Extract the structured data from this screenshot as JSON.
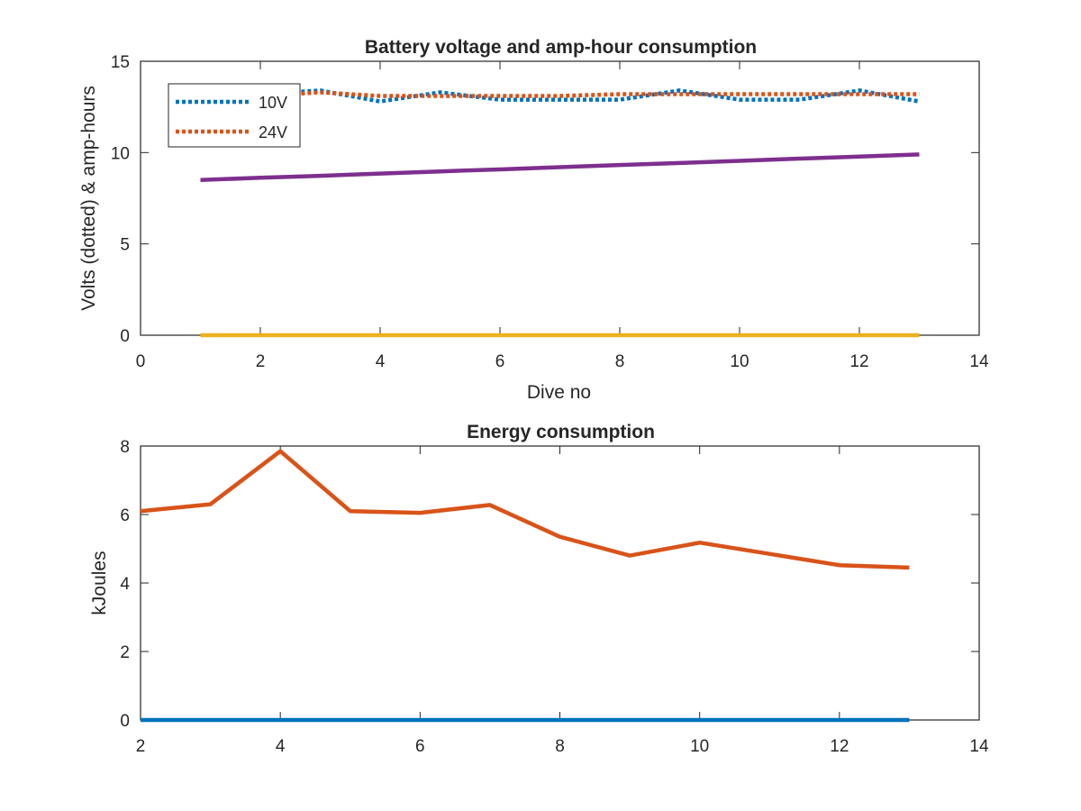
{
  "chart_data": [
    {
      "type": "line",
      "title": "Battery voltage and amp-hour consumption",
      "xlabel": "Dive no",
      "ylabel": "Volts (dotted) & amp-hours",
      "xlim": [
        0,
        14
      ],
      "ylim": [
        0,
        15
      ],
      "xticks": [
        "0",
        "2",
        "4",
        "6",
        "8",
        "10",
        "12",
        "14"
      ],
      "yticks": [
        "0",
        "5",
        "10",
        "15"
      ],
      "grid": false,
      "legend": {
        "placement": "top-left",
        "entries": [
          "10V",
          "24V"
        ]
      },
      "x": [
        1,
        2,
        3,
        4,
        5,
        6,
        7,
        8,
        9,
        10,
        11,
        12,
        13
      ],
      "series": [
        {
          "name": "10V",
          "style": "dotted",
          "color": "#0072BD",
          "values": [
            13.1,
            13.2,
            13.4,
            12.8,
            13.3,
            12.9,
            12.9,
            12.9,
            13.4,
            12.9,
            12.9,
            13.4,
            12.8
          ]
        },
        {
          "name": "24V",
          "style": "dotted",
          "color": "#D95319",
          "values": [
            13.1,
            13.1,
            13.3,
            13.1,
            13.1,
            13.1,
            13.1,
            13.2,
            13.2,
            13.2,
            13.2,
            13.2,
            13.2
          ]
        },
        {
          "style": "solid",
          "color": "#7E2F8E",
          "values": [
            8.5,
            8.62,
            8.73,
            8.85,
            8.97,
            9.08,
            9.2,
            9.32,
            9.43,
            9.55,
            9.67,
            9.78,
            9.9
          ]
        },
        {
          "style": "solid",
          "color": "#EDB120",
          "values": [
            0,
            0,
            0,
            0,
            0,
            0,
            0,
            0,
            0,
            0,
            0,
            0,
            0
          ]
        }
      ]
    },
    {
      "type": "line",
      "title": "Energy consumption",
      "xlabel": "",
      "ylabel": "kJoules",
      "xlim": [
        2,
        14
      ],
      "ylim": [
        0,
        8
      ],
      "xticks": [
        "2",
        "4",
        "6",
        "8",
        "10",
        "12",
        "14"
      ],
      "yticks": [
        "0",
        "2",
        "4",
        "6",
        "8"
      ],
      "grid": false,
      "x": [
        2,
        3,
        4,
        5,
        6,
        7,
        8,
        9,
        10,
        11,
        12,
        13
      ],
      "series": [
        {
          "style": "solid",
          "color": "#0072BD",
          "values": [
            0,
            0,
            0,
            0,
            0,
            0,
            0,
            0,
            0,
            0,
            0,
            0
          ]
        },
        {
          "style": "solid",
          "color": "#D95319",
          "values": [
            6.1,
            6.3,
            7.85,
            6.1,
            6.05,
            6.28,
            5.35,
            4.8,
            5.18,
            4.85,
            4.52,
            4.45
          ]
        }
      ]
    }
  ]
}
